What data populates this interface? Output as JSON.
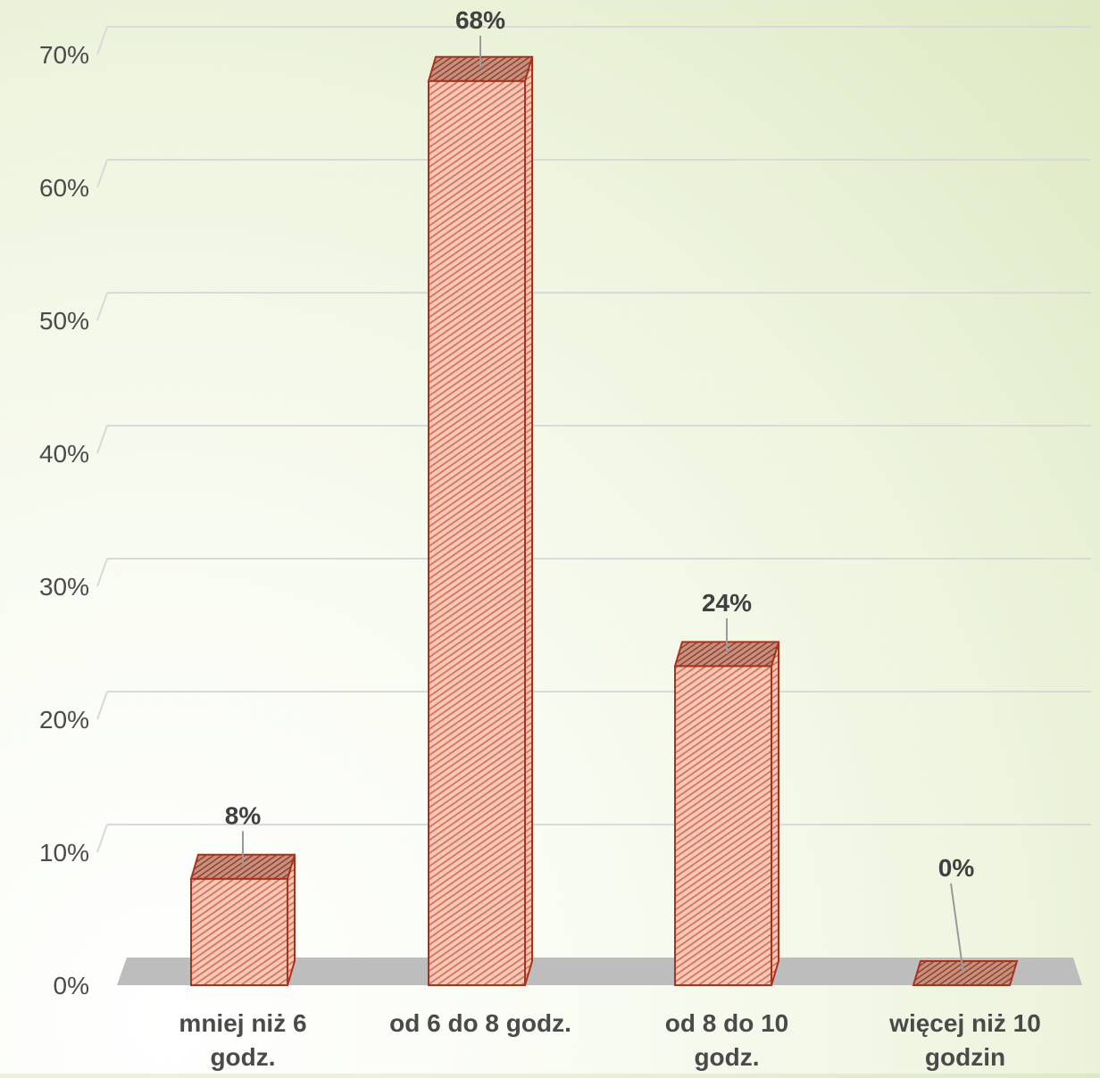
{
  "chart_data": {
    "type": "bar",
    "title": "",
    "xlabel": "",
    "ylabel": "",
    "categories": [
      [
        "mniej niż 6",
        "godz."
      ],
      [
        "od 6 do 8 godz."
      ],
      [
        "od 8 do 10",
        "godz."
      ],
      [
        "więcej niż 10",
        "godzin"
      ]
    ],
    "values": [
      8,
      68,
      24,
      0
    ],
    "data_labels": [
      "8%",
      "68%",
      "24%",
      "0%"
    ],
    "ylim": [
      0,
      70
    ],
    "yticks": [
      0,
      10,
      20,
      30,
      40,
      50,
      60,
      70
    ],
    "ytick_labels": [
      "0%",
      "10%",
      "20%",
      "30%",
      "40%",
      "50%",
      "60%",
      "70%"
    ],
    "grid": true,
    "legend": "none",
    "style": "3d-column",
    "colors": {
      "bar_fill": "#f7c8b8",
      "bar_hatch": "#d06a4c",
      "bar_edge": "#a8321c",
      "bar_top": "#c8907e",
      "floor": "#bdbdbd",
      "gridline": "#d9d9d9",
      "leader_line": "#9a9a9a",
      "axis_text": "#4a4a4a"
    }
  }
}
